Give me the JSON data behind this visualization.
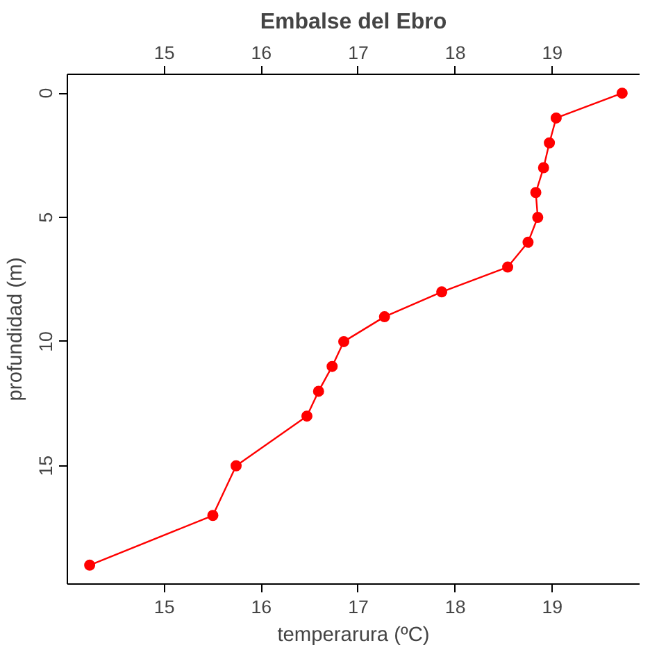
{
  "chart_data": {
    "type": "line",
    "title": "Embalse del Ebro",
    "xlabel": "temperarura (ºC)",
    "ylabel": "profundidad (m)",
    "x": [
      19.72,
      19.04,
      18.97,
      18.91,
      18.83,
      18.85,
      18.75,
      18.54,
      17.86,
      17.27,
      16.85,
      16.73,
      16.59,
      16.47,
      15.74,
      15.5,
      14.23
    ],
    "series": [
      {
        "color": "#ff0000",
        "values": [
          0,
          1,
          2,
          3,
          4,
          5,
          6,
          7,
          8,
          9,
          10,
          11,
          12,
          13,
          15,
          17,
          19
        ]
      }
    ],
    "xlim": [
      14.0,
      19.9
    ],
    "xticks": [
      15,
      16,
      17,
      18,
      19
    ],
    "x2lim": [
      14.0,
      19.9
    ],
    "x2ticks": [
      15,
      16,
      17,
      18,
      19
    ],
    "ylim": [
      19.76,
      -0.76
    ],
    "yticks": [
      0,
      5,
      10,
      15
    ],
    "grid": false,
    "marker": "circle",
    "line_style": "solid"
  }
}
